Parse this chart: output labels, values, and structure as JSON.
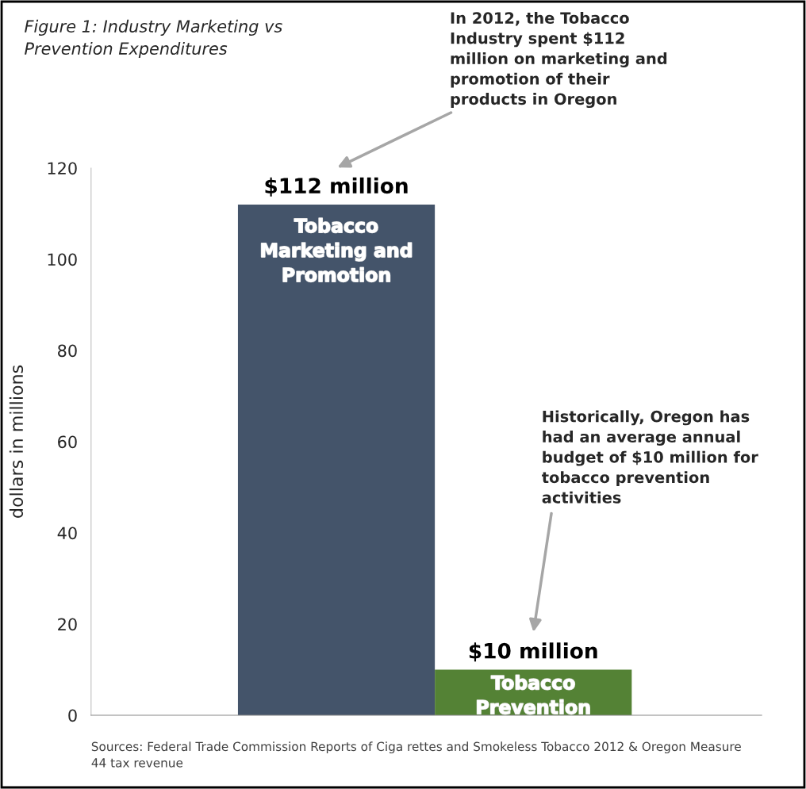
{
  "chart_data": {
    "type": "bar",
    "title": "Figure 1: Industry Marketing vs Prevention Expenditures",
    "ylabel": "dollars in millions",
    "categories": [
      "Tobacco Marketing and Promotion",
      "Tobacco Prevention"
    ],
    "values": [
      112,
      10
    ],
    "colors": [
      "#44546a",
      "#548235"
    ],
    "value_labels": [
      "$112 million",
      "$10 million"
    ],
    "ylim": [
      0,
      120
    ],
    "yticks": [
      0,
      20,
      40,
      60,
      80,
      100,
      120
    ],
    "grid": false,
    "legend": false,
    "annotations": [
      "In 2012, the Tobacco Industry spent $112 million on marketing and promotion of their products in Oregon",
      "Historically, Oregon has had an average annual budget of $10 million for tobacco prevention activities",
      "Sources: Federal Trade Commission Reports of Ciga rettes and Smokeless Tobacco 2012 & Oregon Measure 44 tax revenue"
    ]
  }
}
